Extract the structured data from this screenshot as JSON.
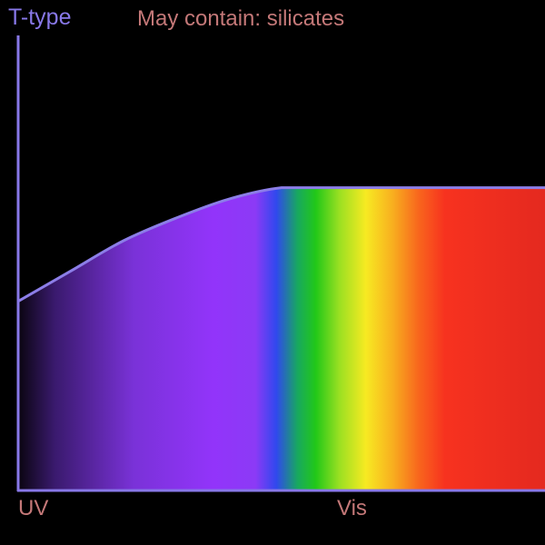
{
  "chart_data": {
    "type": "area",
    "title": "T-type",
    "subtitle": "May contain: silicates",
    "xlabel": "",
    "ylabel": "",
    "x_tick_labels": [
      "UV",
      "Vis"
    ],
    "x": [
      0.0,
      0.1,
      0.2,
      0.3,
      0.4,
      0.5,
      0.6,
      0.7,
      0.8,
      0.9,
      1.0
    ],
    "values": [
      0.5,
      0.58,
      0.66,
      0.72,
      0.77,
      0.8,
      0.8,
      0.8,
      0.8,
      0.8,
      0.8
    ],
    "xlim": [
      0,
      1
    ],
    "ylim": [
      0,
      1.2
    ],
    "grid": false,
    "legend": "none",
    "fill": "visible-spectrum gradient (UV dark violet to red)"
  },
  "colors": {
    "background": "#000000",
    "axis": "#8878e8",
    "curve": "#8c7ee8",
    "title": "#8878e8",
    "subtitle": "#c47878",
    "tick_label": "#c47878",
    "spectrum": [
      {
        "offset": 0.0,
        "color": "#0a0510"
      },
      {
        "offset": 0.07,
        "color": "#3a1a6e"
      },
      {
        "offset": 0.22,
        "color": "#7a32d8"
      },
      {
        "offset": 0.37,
        "color": "#9234fa"
      },
      {
        "offset": 0.45,
        "color": "#8c3af6"
      },
      {
        "offset": 0.49,
        "color": "#3048ee"
      },
      {
        "offset": 0.53,
        "color": "#18a860"
      },
      {
        "offset": 0.565,
        "color": "#22c818"
      },
      {
        "offset": 0.61,
        "color": "#9be022"
      },
      {
        "offset": 0.66,
        "color": "#f7ea22"
      },
      {
        "offset": 0.71,
        "color": "#f8b01f"
      },
      {
        "offset": 0.76,
        "color": "#f8661d"
      },
      {
        "offset": 0.81,
        "color": "#f7321f"
      },
      {
        "offset": 1.0,
        "color": "#e4291f"
      }
    ]
  }
}
